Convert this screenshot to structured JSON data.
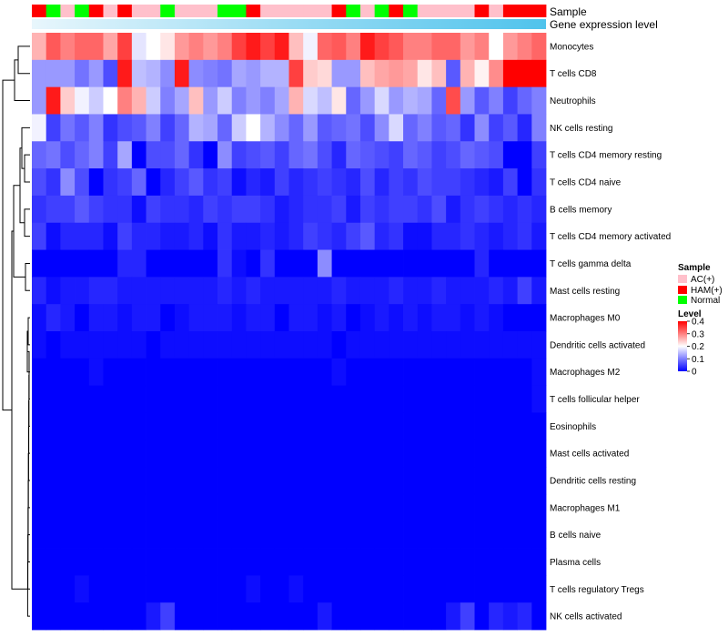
{
  "chart_data": {
    "type": "heatmap",
    "title": "",
    "column_annotations": [
      {
        "name": "Sample",
        "values": [
          "HAM(+)",
          "Normal",
          "AC(+)",
          "Normal",
          "HAM(+)",
          "AC(+)",
          "HAM(+)",
          "AC(+)",
          "AC(+)",
          "Normal",
          "AC(+)",
          "AC(+)",
          "AC(+)",
          "Normal",
          "Normal",
          "HAM(+)",
          "AC(+)",
          "AC(+)",
          "AC(+)",
          "AC(+)",
          "AC(+)",
          "HAM(+)",
          "Normal",
          "AC(+)",
          "Normal",
          "HAM(+)",
          "Normal",
          "AC(+)",
          "AC(+)",
          "AC(+)",
          "AC(+)",
          "HAM(+)",
          "AC(+)",
          "HAM(+)",
          "HAM(+)",
          "HAM(+)"
        ]
      },
      {
        "name": "Gene expression level",
        "gradient": [
          "#e8f6fc",
          "#4fc3ec"
        ]
      }
    ],
    "rows": [
      "Monocytes",
      "T cells CD8",
      "Neutrophils",
      "NK cells resting",
      "T cells CD4 memory resting",
      "T cells CD4 naive",
      "B cells memory",
      "T cells CD4 memory activated",
      "T cells gamma delta",
      "Mast cells resting",
      "Macrophages M0",
      "Dendritic cells activated",
      "Macrophages M2",
      "T cells follicular helper",
      "Eosinophils",
      "Mast cells activated",
      "Dendritic cells resting",
      "Macrophages M1",
      "B cells naive",
      "Plasma cells",
      "T cells regulatory  Tregs",
      "NK cells activated"
    ],
    "values": [
      [
        0.26,
        0.33,
        0.3,
        0.32,
        0.32,
        0.27,
        0.35,
        0.18,
        0.2,
        0.22,
        0.28,
        0.3,
        0.28,
        0.3,
        0.35,
        0.38,
        0.35,
        0.38,
        0.25,
        0.19,
        0.32,
        0.33,
        0.3,
        0.38,
        0.35,
        0.33,
        0.3,
        0.3,
        0.32,
        0.32,
        0.28,
        0.3,
        0.2,
        0.28,
        0.3,
        0.32
      ],
      [
        0.12,
        0.12,
        0.12,
        0.09,
        0.12,
        0.06,
        0.38,
        0.15,
        0.14,
        0.11,
        0.38,
        0.11,
        0.1,
        0.09,
        0.13,
        0.12,
        0.14,
        0.14,
        0.35,
        0.24,
        0.23,
        0.12,
        0.12,
        0.25,
        0.27,
        0.28,
        0.27,
        0.22,
        0.25,
        0.07,
        0.26,
        0.21,
        0.29,
        0.4,
        0.4,
        0.4
      ],
      [
        0.12,
        0.38,
        0.24,
        0.19,
        0.16,
        0.2,
        0.3,
        0.26,
        0.16,
        0.1,
        0.13,
        0.25,
        0.12,
        0.16,
        0.1,
        0.12,
        0.1,
        0.13,
        0.26,
        0.17,
        0.15,
        0.22,
        0.08,
        0.12,
        0.17,
        0.12,
        0.14,
        0.13,
        0.08,
        0.34,
        0.12,
        0.07,
        0.1,
        0.05,
        0.08,
        0.1
      ],
      [
        0.19,
        0.05,
        0.09,
        0.07,
        0.1,
        0.04,
        0.06,
        0.07,
        0.1,
        0.05,
        0.08,
        0.14,
        0.13,
        0.08,
        0.16,
        0.2,
        0.14,
        0.11,
        0.08,
        0.12,
        0.07,
        0.08,
        0.09,
        0.06,
        0.11,
        0.17,
        0.08,
        0.1,
        0.07,
        0.08,
        0.04,
        0.11,
        0.05,
        0.07,
        0.03,
        0.1
      ],
      [
        0.08,
        0.09,
        0.06,
        0.08,
        0.1,
        0.05,
        0.13,
        0.0,
        0.06,
        0.06,
        0.08,
        0.04,
        0.0,
        0.11,
        0.05,
        0.06,
        0.07,
        0.05,
        0.08,
        0.09,
        0.06,
        0.03,
        0.08,
        0.07,
        0.06,
        0.05,
        0.08,
        0.07,
        0.05,
        0.06,
        0.08,
        0.07,
        0.06,
        0.0,
        0.0,
        0.05
      ],
      [
        0.06,
        0.04,
        0.11,
        0.06,
        0.0,
        0.04,
        0.05,
        0.08,
        0.0,
        0.03,
        0.05,
        0.07,
        0.04,
        0.05,
        0.01,
        0.03,
        0.02,
        0.05,
        0.03,
        0.04,
        0.05,
        0.04,
        0.03,
        0.06,
        0.03,
        0.05,
        0.04,
        0.06,
        0.05,
        0.05,
        0.04,
        0.03,
        0.02,
        0.05,
        0.0,
        0.04
      ],
      [
        0.04,
        0.05,
        0.05,
        0.07,
        0.05,
        0.04,
        0.04,
        0.01,
        0.05,
        0.04,
        0.04,
        0.03,
        0.05,
        0.04,
        0.05,
        0.05,
        0.04,
        0.02,
        0.03,
        0.04,
        0.04,
        0.05,
        0.02,
        0.05,
        0.04,
        0.05,
        0.05,
        0.04,
        0.06,
        0.02,
        0.04,
        0.05,
        0.04,
        0.03,
        0.04,
        0.03
      ],
      [
        0.05,
        0.01,
        0.03,
        0.03,
        0.03,
        0.01,
        0.05,
        0.03,
        0.03,
        0.02,
        0.02,
        0.03,
        0.01,
        0.04,
        0.02,
        0.02,
        0.03,
        0.02,
        0.03,
        0.05,
        0.04,
        0.03,
        0.05,
        0.07,
        0.03,
        0.04,
        0.01,
        0.01,
        0.03,
        0.03,
        0.04,
        0.03,
        0.02,
        0.03,
        0.04,
        0.02
      ],
      [
        0.0,
        0.0,
        0.0,
        0.0,
        0.0,
        0.0,
        0.03,
        0.03,
        0.0,
        0.0,
        0.0,
        0.0,
        0.0,
        0.04,
        0.01,
        0.0,
        0.04,
        0.0,
        0.0,
        0.0,
        0.11,
        0.0,
        0.0,
        0.0,
        0.0,
        0.0,
        0.0,
        0.0,
        0.0,
        0.0,
        0.0,
        0.03,
        0.0,
        0.0,
        0.0,
        0.0
      ],
      [
        0.03,
        0.01,
        0.02,
        0.02,
        0.03,
        0.03,
        0.02,
        0.02,
        0.02,
        0.02,
        0.02,
        0.02,
        0.02,
        0.03,
        0.02,
        0.03,
        0.02,
        0.02,
        0.02,
        0.02,
        0.02,
        0.03,
        0.02,
        0.02,
        0.02,
        0.03,
        0.02,
        0.02,
        0.03,
        0.02,
        0.02,
        0.02,
        0.03,
        0.02,
        0.05,
        0.02
      ],
      [
        0.01,
        0.03,
        0.02,
        0.0,
        0.02,
        0.02,
        0.01,
        0.02,
        0.02,
        0.0,
        0.01,
        0.02,
        0.02,
        0.02,
        0.01,
        0.02,
        0.02,
        0.0,
        0.02,
        0.02,
        0.01,
        0.02,
        0.0,
        0.01,
        0.02,
        0.01,
        0.02,
        0.01,
        0.02,
        0.02,
        0.01,
        0.02,
        0.01,
        0.0,
        0.0,
        0.0
      ],
      [
        0.01,
        0.0,
        0.01,
        0.01,
        0.01,
        0.01,
        0.01,
        0.01,
        0.0,
        0.01,
        0.01,
        0.01,
        0.01,
        0.01,
        0.01,
        0.01,
        0.01,
        0.01,
        0.01,
        0.01,
        0.01,
        0.0,
        0.01,
        0.01,
        0.01,
        0.01,
        0.01,
        0.01,
        0.01,
        0.01,
        0.01,
        0.01,
        0.01,
        0.01,
        0.01,
        0.01
      ],
      [
        0.0,
        0.0,
        0.0,
        0.0,
        0.01,
        0.0,
        0.0,
        0.0,
        0.0,
        0.0,
        0.0,
        0.0,
        0.0,
        0.0,
        0.0,
        0.0,
        0.0,
        0.0,
        0.0,
        0.0,
        0.0,
        0.01,
        0.0,
        0.0,
        0.0,
        0.0,
        0.0,
        0.0,
        0.0,
        0.0,
        0.0,
        0.0,
        0.0,
        0.0,
        0.0,
        0.01
      ],
      [
        0.0,
        0.0,
        0.0,
        0.0,
        0.0,
        0.0,
        0.0,
        0.0,
        0.0,
        0.0,
        0.0,
        0.0,
        0.0,
        0.0,
        0.0,
        0.0,
        0.0,
        0.0,
        0.0,
        0.0,
        0.0,
        0.0,
        0.0,
        0.0,
        0.0,
        0.0,
        0.0,
        0.0,
        0.0,
        0.0,
        0.0,
        0.0,
        0.0,
        0.0,
        0.0,
        0.01
      ],
      [
        0.0,
        0.0,
        0.0,
        0.0,
        0.0,
        0.0,
        0.0,
        0.0,
        0.0,
        0.0,
        0.0,
        0.0,
        0.0,
        0.0,
        0.0,
        0.0,
        0.0,
        0.0,
        0.0,
        0.0,
        0.0,
        0.0,
        0.0,
        0.0,
        0.0,
        0.0,
        0.0,
        0.0,
        0.0,
        0.0,
        0.0,
        0.0,
        0.0,
        0.0,
        0.0,
        0.0
      ],
      [
        0.0,
        0.0,
        0.0,
        0.0,
        0.0,
        0.0,
        0.0,
        0.0,
        0.0,
        0.0,
        0.0,
        0.0,
        0.0,
        0.0,
        0.0,
        0.0,
        0.0,
        0.0,
        0.0,
        0.0,
        0.0,
        0.0,
        0.0,
        0.0,
        0.0,
        0.0,
        0.0,
        0.0,
        0.0,
        0.0,
        0.0,
        0.0,
        0.0,
        0.0,
        0.0,
        0.0
      ],
      [
        0.0,
        0.0,
        0.0,
        0.0,
        0.0,
        0.0,
        0.0,
        0.0,
        0.0,
        0.0,
        0.0,
        0.0,
        0.0,
        0.0,
        0.0,
        0.0,
        0.0,
        0.0,
        0.0,
        0.0,
        0.0,
        0.0,
        0.0,
        0.0,
        0.0,
        0.0,
        0.0,
        0.0,
        0.0,
        0.0,
        0.0,
        0.0,
        0.0,
        0.0,
        0.0,
        0.0
      ],
      [
        0.0,
        0.0,
        0.0,
        0.0,
        0.0,
        0.0,
        0.0,
        0.0,
        0.0,
        0.0,
        0.0,
        0.0,
        0.0,
        0.0,
        0.0,
        0.0,
        0.0,
        0.0,
        0.0,
        0.0,
        0.0,
        0.0,
        0.0,
        0.0,
        0.0,
        0.0,
        0.0,
        0.0,
        0.0,
        0.0,
        0.0,
        0.0,
        0.0,
        0.0,
        0.0,
        0.0
      ],
      [
        0.0,
        0.0,
        0.0,
        0.0,
        0.0,
        0.0,
        0.0,
        0.0,
        0.0,
        0.0,
        0.0,
        0.0,
        0.0,
        0.0,
        0.0,
        0.0,
        0.0,
        0.0,
        0.0,
        0.0,
        0.0,
        0.0,
        0.0,
        0.0,
        0.0,
        0.0,
        0.0,
        0.0,
        0.0,
        0.0,
        0.0,
        0.0,
        0.0,
        0.0,
        0.0,
        0.0
      ],
      [
        0.0,
        0.0,
        0.0,
        0.0,
        0.0,
        0.0,
        0.0,
        0.0,
        0.0,
        0.0,
        0.0,
        0.0,
        0.0,
        0.0,
        0.0,
        0.0,
        0.0,
        0.0,
        0.0,
        0.0,
        0.0,
        0.0,
        0.0,
        0.0,
        0.0,
        0.0,
        0.0,
        0.0,
        0.0,
        0.0,
        0.0,
        0.0,
        0.0,
        0.0,
        0.0,
        0.0
      ],
      [
        0.0,
        0.0,
        0.0,
        0.01,
        0.0,
        0.0,
        0.0,
        0.0,
        0.0,
        0.0,
        0.0,
        0.0,
        0.0,
        0.0,
        0.0,
        0.01,
        0.0,
        0.0,
        0.01,
        0.0,
        0.0,
        0.0,
        0.0,
        0.0,
        0.0,
        0.0,
        0.0,
        0.0,
        0.0,
        0.0,
        0.0,
        0.0,
        0.0,
        0.0,
        0.0,
        0.0
      ],
      [
        0.0,
        0.0,
        0.0,
        0.0,
        0.0,
        0.0,
        0.0,
        0.0,
        0.02,
        0.05,
        0.0,
        0.0,
        0.0,
        0.0,
        0.0,
        0.0,
        0.0,
        0.0,
        0.0,
        0.0,
        0.02,
        0.0,
        0.0,
        0.0,
        0.0,
        0.0,
        0.0,
        0.0,
        0.0,
        0.02,
        0.05,
        0.0,
        0.03,
        0.02,
        0.03,
        0.0
      ]
    ],
    "color_scale": {
      "name": "Level",
      "min": 0,
      "max": 0.4,
      "stops": [
        [
          0,
          "#0000ff"
        ],
        [
          0.2,
          "#ffffff"
        ],
        [
          0.4,
          "#ff0000"
        ]
      ],
      "ticks": [
        "0.4",
        "0.3",
        "0.2",
        "0.1",
        "0"
      ]
    },
    "legends": [
      {
        "title": "Sample",
        "entries": [
          {
            "label": "AC(+)",
            "color": "#ffc0cb"
          },
          {
            "label": "HAM(+)",
            "color": "#ff0000"
          },
          {
            "label": "Normal",
            "color": "#00ff00"
          }
        ]
      }
    ],
    "row_dendrogram": true
  }
}
